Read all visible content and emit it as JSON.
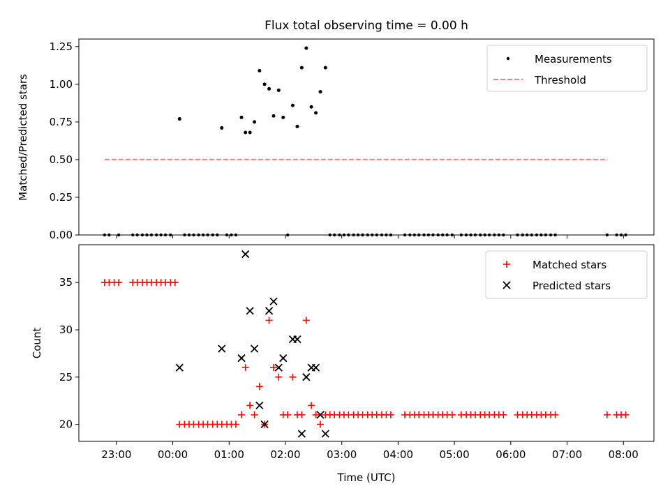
{
  "title": "Flux total observing time = 0.00 h",
  "colors": {
    "matched": "#ff0000",
    "predicted": "#000000",
    "threshold": "#ff7f7f",
    "measurement": "#000000"
  },
  "time_ticks": [
    {
      "h": -1,
      "label": "23:00"
    },
    {
      "h": 0,
      "label": "00:00"
    },
    {
      "h": 1,
      "label": "01:00"
    },
    {
      "h": 2,
      "label": "02:00"
    },
    {
      "h": 3,
      "label": "03:00"
    },
    {
      "h": 4,
      "label": "04:00"
    },
    {
      "h": 5,
      "label": "05:00"
    },
    {
      "h": 6,
      "label": "06:00"
    },
    {
      "h": 7,
      "label": "07:00"
    },
    {
      "h": 8,
      "label": "08:00"
    }
  ],
  "chart_data": [
    {
      "type": "scatter",
      "name": "ratio-panel",
      "ylabel": "Matched/Predicted stars",
      "xlim": [
        -1.667,
        8.542
      ],
      "ylim": [
        0,
        1.3
      ],
      "yticks": [
        0.0,
        0.25,
        0.5,
        0.75,
        1.0,
        1.25
      ],
      "ytick_labels": [
        "0.00",
        "0.25",
        "0.50",
        "0.75",
        "1.00",
        "1.25"
      ],
      "legend": {
        "position": "top-right",
        "entries": [
          "Measurements",
          "Threshold"
        ]
      },
      "threshold": {
        "y": 0.5,
        "x_range": [
          -1.21,
          7.72
        ],
        "label": "Threshold"
      },
      "measurements": [
        [
          0.12,
          0.77
        ],
        [
          0.87,
          0.71
        ],
        [
          1.22,
          0.78
        ],
        [
          1.29,
          0.68
        ],
        [
          1.37,
          0.68
        ],
        [
          1.45,
          0.75
        ],
        [
          1.54,
          1.09
        ],
        [
          1.63,
          1.0
        ],
        [
          1.71,
          0.97
        ],
        [
          1.79,
          0.79
        ],
        [
          1.88,
          0.96
        ],
        [
          1.96,
          0.78
        ],
        [
          2.13,
          0.86
        ],
        [
          2.21,
          0.72
        ],
        [
          2.29,
          1.11
        ],
        [
          2.37,
          1.24
        ],
        [
          2.46,
          0.85
        ],
        [
          2.54,
          0.81
        ],
        [
          2.62,
          0.95
        ],
        [
          2.71,
          1.11
        ]
      ],
      "zero_times": [
        -1.21,
        -1.13,
        -0.96,
        -0.71,
        -0.63,
        -0.54,
        -0.46,
        -0.38,
        -0.29,
        -0.21,
        -0.13,
        -0.04,
        0.21,
        0.29,
        0.37,
        0.46,
        0.54,
        0.62,
        0.71,
        0.79,
        0.96,
        1.04,
        1.12,
        2.04,
        2.79,
        2.87,
        2.96,
        3.04,
        3.12,
        3.21,
        3.29,
        3.37,
        3.46,
        3.54,
        3.62,
        3.71,
        3.79,
        3.87,
        4.12,
        4.21,
        4.29,
        4.37,
        4.46,
        4.54,
        4.62,
        4.71,
        4.79,
        4.87,
        4.96,
        5.12,
        5.21,
        5.29,
        5.37,
        5.46,
        5.54,
        5.62,
        5.71,
        5.79,
        5.87,
        6.12,
        6.21,
        6.29,
        6.37,
        6.46,
        6.54,
        6.62,
        6.71,
        6.79,
        7.71,
        7.88,
        7.96,
        8.04
      ]
    },
    {
      "type": "scatter",
      "name": "count-panel",
      "xlabel": "Time (UTC)",
      "ylabel": "Count",
      "xlim": [
        -1.667,
        8.542
      ],
      "ylim": [
        18.2,
        39.0
      ],
      "yticks": [
        20,
        25,
        30,
        35
      ],
      "ytick_labels": [
        "20",
        "25",
        "30",
        "35"
      ],
      "legend": {
        "position": "top-right",
        "entries": [
          "Matched stars",
          "Predicted stars"
        ]
      },
      "matched": [
        [
          -1.21,
          35
        ],
        [
          -1.13,
          35
        ],
        [
          -1.04,
          35
        ],
        [
          -0.96,
          35
        ],
        [
          -0.71,
          35
        ],
        [
          -0.63,
          35
        ],
        [
          -0.54,
          35
        ],
        [
          -0.46,
          35
        ],
        [
          -0.38,
          35
        ],
        [
          -0.29,
          35
        ],
        [
          -0.21,
          35
        ],
        [
          -0.13,
          35
        ],
        [
          -0.04,
          35
        ],
        [
          0.04,
          35
        ],
        [
          0.12,
          20
        ],
        [
          0.21,
          20
        ],
        [
          0.29,
          20
        ],
        [
          0.37,
          20
        ],
        [
          0.46,
          20
        ],
        [
          0.54,
          20
        ],
        [
          0.62,
          20
        ],
        [
          0.71,
          20
        ],
        [
          0.79,
          20
        ],
        [
          0.87,
          20
        ],
        [
          0.96,
          20
        ],
        [
          1.04,
          20
        ],
        [
          1.12,
          20
        ],
        [
          1.22,
          21
        ],
        [
          1.29,
          26
        ],
        [
          1.37,
          22
        ],
        [
          1.45,
          21
        ],
        [
          1.54,
          24
        ],
        [
          1.63,
          20
        ],
        [
          1.71,
          31
        ],
        [
          1.79,
          26
        ],
        [
          1.88,
          25
        ],
        [
          1.96,
          21
        ],
        [
          2.04,
          21
        ],
        [
          2.13,
          25
        ],
        [
          2.21,
          21
        ],
        [
          2.29,
          21
        ],
        [
          2.37,
          31
        ],
        [
          2.46,
          22
        ],
        [
          2.54,
          21
        ],
        [
          2.62,
          20
        ],
        [
          2.71,
          21
        ],
        [
          2.79,
          21
        ],
        [
          2.87,
          21
        ],
        [
          2.96,
          21
        ],
        [
          3.04,
          21
        ],
        [
          3.12,
          21
        ],
        [
          3.21,
          21
        ],
        [
          3.29,
          21
        ],
        [
          3.37,
          21
        ],
        [
          3.46,
          21
        ],
        [
          3.54,
          21
        ],
        [
          3.62,
          21
        ],
        [
          3.71,
          21
        ],
        [
          3.79,
          21
        ],
        [
          3.87,
          21
        ],
        [
          4.12,
          21
        ],
        [
          4.21,
          21
        ],
        [
          4.29,
          21
        ],
        [
          4.37,
          21
        ],
        [
          4.46,
          21
        ],
        [
          4.54,
          21
        ],
        [
          4.62,
          21
        ],
        [
          4.71,
          21
        ],
        [
          4.79,
          21
        ],
        [
          4.87,
          21
        ],
        [
          4.96,
          21
        ],
        [
          5.12,
          21
        ],
        [
          5.21,
          21
        ],
        [
          5.29,
          21
        ],
        [
          5.37,
          21
        ],
        [
          5.46,
          21
        ],
        [
          5.54,
          21
        ],
        [
          5.62,
          21
        ],
        [
          5.71,
          21
        ],
        [
          5.79,
          21
        ],
        [
          5.87,
          21
        ],
        [
          6.12,
          21
        ],
        [
          6.21,
          21
        ],
        [
          6.29,
          21
        ],
        [
          6.37,
          21
        ],
        [
          6.46,
          21
        ],
        [
          6.54,
          21
        ],
        [
          6.62,
          21
        ],
        [
          6.71,
          21
        ],
        [
          6.79,
          21
        ],
        [
          7.71,
          21
        ],
        [
          7.88,
          21
        ],
        [
          7.96,
          21
        ],
        [
          8.04,
          21
        ]
      ],
      "predicted": [
        [
          0.12,
          26
        ],
        [
          0.87,
          28
        ],
        [
          1.22,
          27
        ],
        [
          1.29,
          38
        ],
        [
          1.37,
          32
        ],
        [
          1.45,
          28
        ],
        [
          1.54,
          22
        ],
        [
          1.63,
          20
        ],
        [
          1.71,
          32
        ],
        [
          1.79,
          33
        ],
        [
          1.88,
          26
        ],
        [
          1.96,
          27
        ],
        [
          2.13,
          29
        ],
        [
          2.21,
          29
        ],
        [
          2.29,
          19
        ],
        [
          2.37,
          25
        ],
        [
          2.46,
          26
        ],
        [
          2.54,
          26
        ],
        [
          2.62,
          21
        ],
        [
          2.71,
          19
        ]
      ]
    }
  ]
}
